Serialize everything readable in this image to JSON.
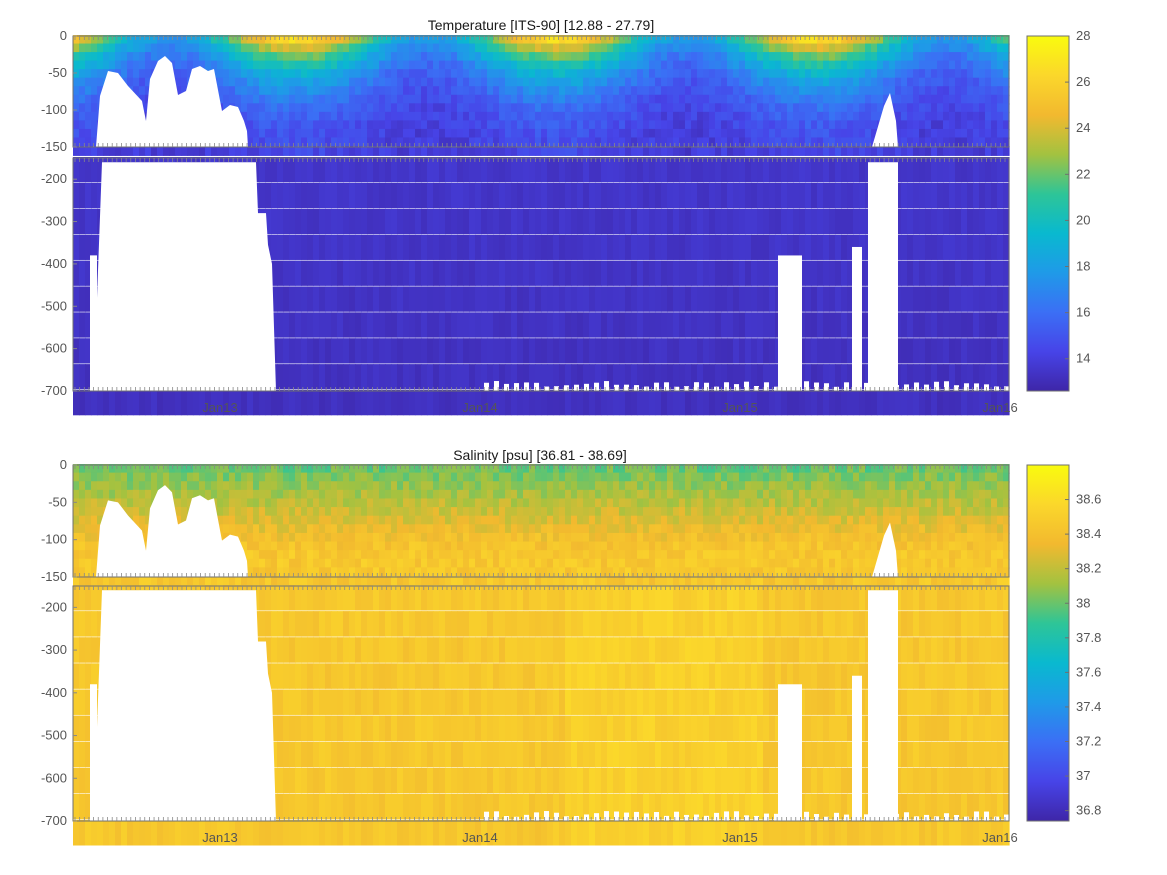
{
  "chart_data": [
    {
      "type": "heatmap",
      "title": "Temperature [ITS-90]   [12.88 - 27.79]",
      "variable": "temperature",
      "value_range": [
        12.88,
        27.79
      ],
      "x_ticks": [
        "Jan13",
        "Jan14",
        "Jan15",
        "Jan16"
      ],
      "y_ticks_upper": [
        0,
        -50,
        -100,
        -150
      ],
      "y_ticks_lower": [
        -200,
        -300,
        -400,
        -500,
        -600,
        -700
      ],
      "ylim_upper": [
        -150,
        0
      ],
      "ylim_lower": [
        -700,
        -150
      ],
      "colorbar_ticks": [
        14,
        16,
        18,
        20,
        22,
        24,
        26,
        28
      ],
      "colorbar_range": [
        12.6,
        28
      ],
      "colormap": "parula",
      "colormap_stops": [
        "#3e26a8",
        "#4744e8",
        "#3b6ff5",
        "#1f9ae8",
        "#09b9cf",
        "#2ec597",
        "#a3c240",
        "#f2b92f",
        "#fbd72b",
        "#f9fb0e"
      ],
      "surface_value_warm": 26.5,
      "surface_value_cool": 17.5,
      "deep_value": 13.5,
      "grid": false
    },
    {
      "type": "heatmap",
      "title": "Salinity [psu]   [36.81 - 38.69]",
      "variable": "salinity",
      "value_range": [
        36.81,
        38.69
      ],
      "x_ticks": [
        "Jan13",
        "Jan14",
        "Jan15",
        "Jan16"
      ],
      "y_ticks_upper": [
        0,
        -50,
        -100,
        -150
      ],
      "y_ticks_lower": [
        -200,
        -300,
        -400,
        -500,
        -600,
        -700
      ],
      "ylim_upper": [
        -150,
        0
      ],
      "ylim_lower": [
        -700,
        -150
      ],
      "colorbar_ticks": [
        36.8,
        37,
        37.2,
        37.4,
        37.6,
        37.8,
        38,
        38.2,
        38.4,
        38.6
      ],
      "colorbar_range": [
        36.74,
        38.8
      ],
      "colormap": "parula",
      "colormap_stops": [
        "#3e26a8",
        "#4744e8",
        "#3b6ff5",
        "#1f9ae8",
        "#09b9cf",
        "#2ec597",
        "#a3c240",
        "#f2b92f",
        "#fbd72b",
        "#f9fb0e"
      ],
      "surface_value": 38.0,
      "deep_value": 38.45,
      "grid": false
    }
  ],
  "colors": {
    "missing_data": "#ffffff",
    "frame": "#6f6f6f",
    "tick_text": "#555555"
  }
}
